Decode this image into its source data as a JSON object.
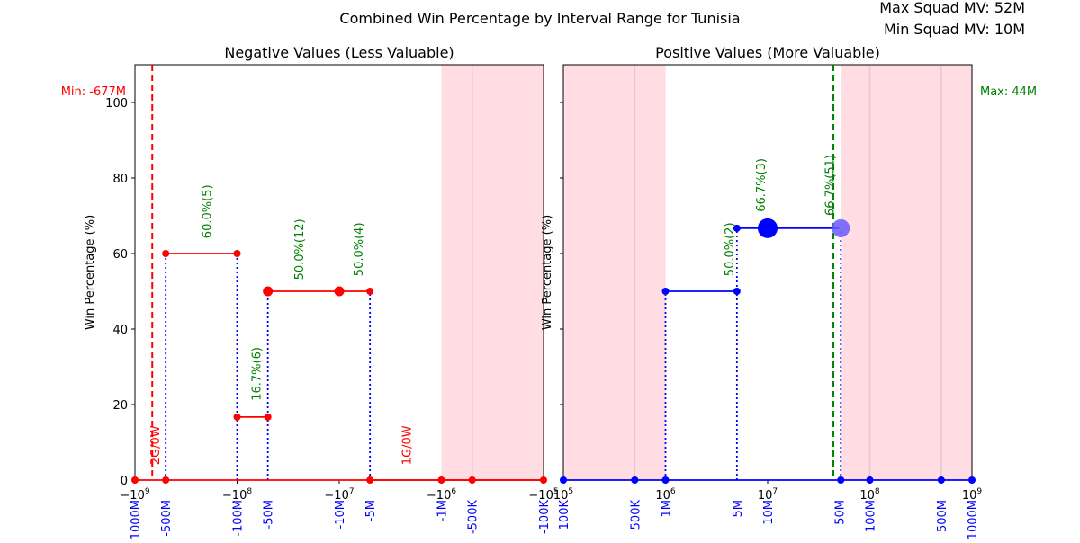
{
  "chart_data": {
    "type": "line",
    "title": "Combined Win Percentage by Interval Range for Tunisia",
    "info": {
      "max_squad_mv": "Max Squad MV: 52M",
      "min_squad_mv": "Min Squad MV: 10M"
    },
    "colors": {
      "negative": "#ff0000",
      "positive": "#0000ff",
      "annotation": "#008000",
      "shade": "#ffdde3",
      "min_line": "#ff0000",
      "max_line": "#008000",
      "connector": "#0000ff"
    },
    "negative_panel": {
      "title": "Negative Values (Less Valuable)",
      "ylabel": "Win Percentage (%)",
      "xscale": "symlog-negative",
      "xlim": [
        -1000000000,
        -100000
      ],
      "ylim": [
        0,
        110
      ],
      "yticks": [
        "0",
        "20",
        "40",
        "60",
        "80",
        "100"
      ],
      "xticks": [
        "−10^9",
        "−10^8",
        "−10^7",
        "−10^6",
        "−10^5"
      ],
      "bottom_labels": [
        {
          "x": -1000000000,
          "label": "-1000M"
        },
        {
          "x": -500000000,
          "label": "-500M"
        },
        {
          "x": -100000000,
          "label": "-100M"
        },
        {
          "x": -50000000,
          "label": "-50M"
        },
        {
          "x": -10000000,
          "label": "-10M"
        },
        {
          "x": -5000000,
          "label": "-5M"
        },
        {
          "x": -1000000,
          "label": "-1M"
        },
        {
          "x": -500000,
          "label": "-500K"
        },
        {
          "x": -100000,
          "label": "-100K"
        }
      ],
      "shaded_range": [
        -1000000,
        -100000
      ],
      "min_marker": {
        "x": -677000000,
        "label": "Min: -677M"
      },
      "segments": [
        {
          "x0": -500000000,
          "x1": -100000000,
          "y": 60.0,
          "label": "60.0%(5)"
        },
        {
          "x0": -100000000,
          "x1": -50000000,
          "y": 16.7,
          "label": "16.7%(6)"
        },
        {
          "x0": -50000000,
          "x1": -5000000,
          "y": 50.0,
          "label": "50.0%(12)"
        },
        {
          "x0": -5000000,
          "x1": -100000,
          "y": 0,
          "label": ""
        }
      ],
      "annotations": [
        {
          "x": -200000000,
          "y": 64,
          "text": "60.0%(5)",
          "color": "green"
        },
        {
          "x": -65000000,
          "y": 21,
          "text": "16.7%(6)",
          "color": "green"
        },
        {
          "x": -25000000,
          "y": 53,
          "text": "50.0%(12)",
          "color": "green"
        },
        {
          "x": -6500000,
          "y": 54,
          "text": "50.0%(4)",
          "color": "green"
        },
        {
          "x": -640000000,
          "y": 4,
          "text": "2G/0W",
          "color": "red"
        },
        {
          "x": -2200000,
          "y": 4,
          "text": "1G/0W",
          "color": "red"
        }
      ],
      "points": [
        {
          "x": -1000000000,
          "y": 0,
          "r": 4
        },
        {
          "x": -500000000,
          "y": 0,
          "r": 4
        },
        {
          "x": -500000000,
          "y": 60,
          "r": 4
        },
        {
          "x": -100000000,
          "y": 60,
          "r": 4
        },
        {
          "x": -100000000,
          "y": 16.7,
          "r": 4
        },
        {
          "x": -50000000,
          "y": 16.7,
          "r": 4
        },
        {
          "x": -50000000,
          "y": 50,
          "r": 5.5
        },
        {
          "x": -10000000,
          "y": 50,
          "r": 5.5
        },
        {
          "x": -5000000,
          "y": 50,
          "r": 4
        },
        {
          "x": -5000000,
          "y": 0,
          "r": 4
        },
        {
          "x": -1000000,
          "y": 0,
          "r": 4
        },
        {
          "x": -500000,
          "y": 0,
          "r": 4
        },
        {
          "x": -100000,
          "y": 0,
          "r": 4
        }
      ],
      "connectors": [
        -500000000,
        -100000000,
        -50000000,
        -5000000
      ]
    },
    "positive_panel": {
      "title": "Positive Values (More Valuable)",
      "ylabel": "Win Percentage (%)",
      "xscale": "log",
      "xlim": [
        100000,
        1000000000
      ],
      "ylim": [
        0,
        110
      ],
      "xticks": [
        "10^5",
        "10^6",
        "10^7",
        "10^8",
        "10^9"
      ],
      "bottom_labels": [
        {
          "x": 100000,
          "label": "100K"
        },
        {
          "x": 500000,
          "label": "500K"
        },
        {
          "x": 1000000,
          "label": "1M"
        },
        {
          "x": 5000000,
          "label": "5M"
        },
        {
          "x": 10000000,
          "label": "10M"
        },
        {
          "x": 50000000,
          "label": "50M"
        },
        {
          "x": 100000000,
          "label": "100M"
        },
        {
          "x": 500000000,
          "label": "500M"
        },
        {
          "x": 1000000000,
          "label": "1000M"
        }
      ],
      "shaded_ranges": [
        [
          100000,
          1000000
        ],
        [
          52000000,
          1000000000
        ]
      ],
      "max_marker": {
        "x": 44000000,
        "label": "Max: 44M"
      },
      "segments": [
        {
          "x0": 1000000,
          "x1": 5000000,
          "y": 50.0,
          "label": "50.0%(2)"
        },
        {
          "x0": 5000000,
          "x1": 50000000,
          "y": 66.7,
          "label": "66.7%(3)"
        }
      ],
      "annotations": [
        {
          "x": 4200000,
          "y": 54,
          "text": "50.0%(2)",
          "color": "green"
        },
        {
          "x": 8500000,
          "y": 71,
          "text": "66.7%(3)",
          "color": "green"
        },
        {
          "x": 40000000,
          "y": 70,
          "text": "66.7%(51)",
          "color": "green"
        }
      ],
      "points": [
        {
          "x": 100000,
          "y": 0,
          "r": 4
        },
        {
          "x": 500000,
          "y": 0,
          "r": 4
        },
        {
          "x": 1000000,
          "y": 0,
          "r": 4
        },
        {
          "x": 1000000,
          "y": 50,
          "r": 4
        },
        {
          "x": 5000000,
          "y": 50,
          "r": 4
        },
        {
          "x": 5000000,
          "y": 66.7,
          "r": 4
        },
        {
          "x": 10000000,
          "y": 66.7,
          "r": 11
        },
        {
          "x": 52000000,
          "y": 66.7,
          "r": 10,
          "alpha": 0.6
        },
        {
          "x": 52000000,
          "y": 0,
          "r": 4
        },
        {
          "x": 100000000,
          "y": 0,
          "r": 4
        },
        {
          "x": 500000000,
          "y": 0,
          "r": 4
        },
        {
          "x": 1000000000,
          "y": 0,
          "r": 4
        }
      ],
      "connectors": [
        1000000,
        5000000,
        52000000
      ]
    }
  }
}
